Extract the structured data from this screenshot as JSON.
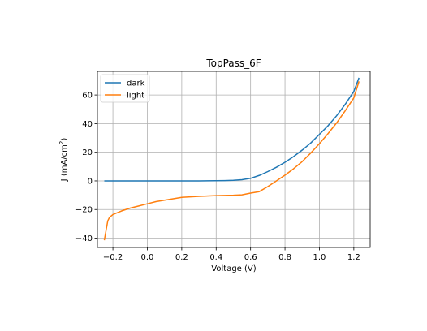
{
  "chart_data": {
    "type": "line",
    "title": "TopPass_6F",
    "xlabel": "Voltage (V)",
    "ylabel_prefix": "J (mA/cm",
    "ylabel_superscript": "2",
    "ylabel_suffix": ")",
    "xlim": [
      -0.29,
      1.295
    ],
    "ylim": [
      -46.5,
      76.5
    ],
    "xticks": [
      -0.2,
      0.0,
      0.2,
      0.4,
      0.6,
      0.8,
      1.0,
      1.2
    ],
    "xtick_labels": [
      "−0.2",
      "0.0",
      "0.2",
      "0.4",
      "0.6",
      "0.8",
      "1.0",
      "1.2"
    ],
    "yticks": [
      -40,
      -20,
      0,
      20,
      40,
      60
    ],
    "ytick_labels": [
      "−40",
      "−20",
      "0",
      "20",
      "40",
      "60"
    ],
    "grid": true,
    "legend_position": "upper-left",
    "series": [
      {
        "name": "dark",
        "color": "#1f77b4",
        "x": [
          -0.25,
          -0.1,
          0.0,
          0.1,
          0.2,
          0.3,
          0.4,
          0.45,
          0.5,
          0.55,
          0.6,
          0.65,
          0.7,
          0.75,
          0.8,
          0.85,
          0.9,
          0.95,
          1.0,
          1.05,
          1.1,
          1.15,
          1.2,
          1.23
        ],
        "y": [
          0,
          0,
          0,
          0,
          0,
          0,
          0.1,
          0.2,
          0.4,
          0.8,
          1.8,
          3.8,
          6.5,
          9.5,
          13,
          17,
          21.5,
          26.5,
          32.5,
          38.5,
          45.5,
          53.5,
          62.5,
          72
        ]
      },
      {
        "name": "light",
        "color": "#ff7f0e",
        "x": [
          -0.25,
          -0.23,
          -0.22,
          -0.2,
          -0.15,
          -0.1,
          -0.05,
          0.0,
          0.05,
          0.1,
          0.15,
          0.2,
          0.3,
          0.4,
          0.5,
          0.55,
          0.6,
          0.65,
          0.7,
          0.75,
          0.8,
          0.85,
          0.9,
          0.95,
          1.0,
          1.05,
          1.1,
          1.15,
          1.2,
          1.23
        ],
        "y": [
          -41.5,
          -28,
          -25.5,
          -23.5,
          -21,
          -19,
          -17.5,
          -16,
          -14.5,
          -13.5,
          -12.5,
          -11.5,
          -10.8,
          -10.3,
          -10,
          -9.7,
          -8.5,
          -7.5,
          -4,
          0,
          4,
          8.5,
          13.5,
          19.5,
          26,
          33,
          40.5,
          49,
          58,
          69.5
        ]
      }
    ]
  }
}
